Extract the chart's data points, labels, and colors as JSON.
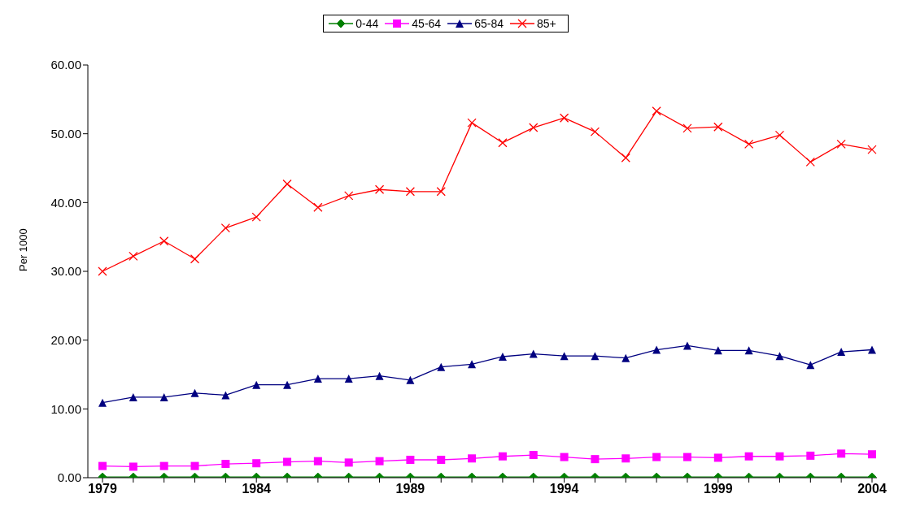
{
  "chart_data": {
    "type": "line",
    "ylabel": "Per 1000",
    "categories": [
      "1979",
      null,
      null,
      null,
      null,
      "1984",
      null,
      null,
      null,
      null,
      "1989",
      null,
      null,
      null,
      null,
      "1994",
      null,
      null,
      null,
      null,
      "1999",
      null,
      null,
      null,
      null,
      "2004"
    ],
    "series": [
      {
        "name": "0-44",
        "color": "#008000",
        "marker": "diamond",
        "values": [
          0.1,
          0.1,
          0.1,
          0.1,
          0.1,
          0.1,
          0.1,
          0.1,
          0.1,
          0.1,
          0.1,
          0.1,
          0.1,
          0.1,
          0.1,
          0.1,
          0.1,
          0.1,
          0.1,
          0.1,
          0.1,
          0.1,
          0.1,
          0.1,
          0.1,
          0.1
        ]
      },
      {
        "name": "45-64",
        "color": "#ff00ff",
        "marker": "square",
        "values": [
          1.7,
          1.6,
          1.7,
          1.7,
          2.0,
          2.1,
          2.3,
          2.4,
          2.2,
          2.4,
          2.6,
          2.6,
          2.8,
          3.1,
          3.3,
          3.0,
          2.7,
          2.8,
          3.0,
          3.0,
          2.9,
          3.1,
          3.1,
          3.2,
          3.5,
          3.4
        ]
      },
      {
        "name": "65-84",
        "color": "#000080",
        "marker": "triangle",
        "values": [
          10.9,
          11.7,
          11.7,
          12.3,
          12.0,
          13.5,
          13.5,
          14.4,
          14.4,
          14.8,
          14.2,
          16.1,
          16.5,
          17.6,
          18.0,
          17.7,
          17.7,
          17.4,
          18.6,
          19.2,
          18.5,
          18.5,
          17.7,
          16.4,
          18.3,
          18.6
        ]
      },
      {
        "name": "85+",
        "color": "#ff0000",
        "marker": "cross",
        "values": [
          30.0,
          32.2,
          34.4,
          31.8,
          36.3,
          37.9,
          42.7,
          39.3,
          41.0,
          41.9,
          41.6,
          41.6,
          51.6,
          48.7,
          50.9,
          52.3,
          50.3,
          46.5,
          53.3,
          50.8,
          51.0,
          48.5,
          49.8,
          45.9,
          48.5,
          47.7
        ]
      }
    ],
    "ylim": [
      0,
      60
    ],
    "yticks": [
      {
        "value": 0,
        "label": "0.00"
      },
      {
        "value": 10,
        "label": "10.00"
      },
      {
        "value": 20,
        "label": "20.00"
      },
      {
        "value": 30,
        "label": "30.00"
      },
      {
        "value": 40,
        "label": "40.00"
      },
      {
        "value": 50,
        "label": "50.00"
      },
      {
        "value": 60,
        "label": "60.00"
      }
    ],
    "grid": false,
    "legend": "top",
    "line_style": "solid"
  }
}
